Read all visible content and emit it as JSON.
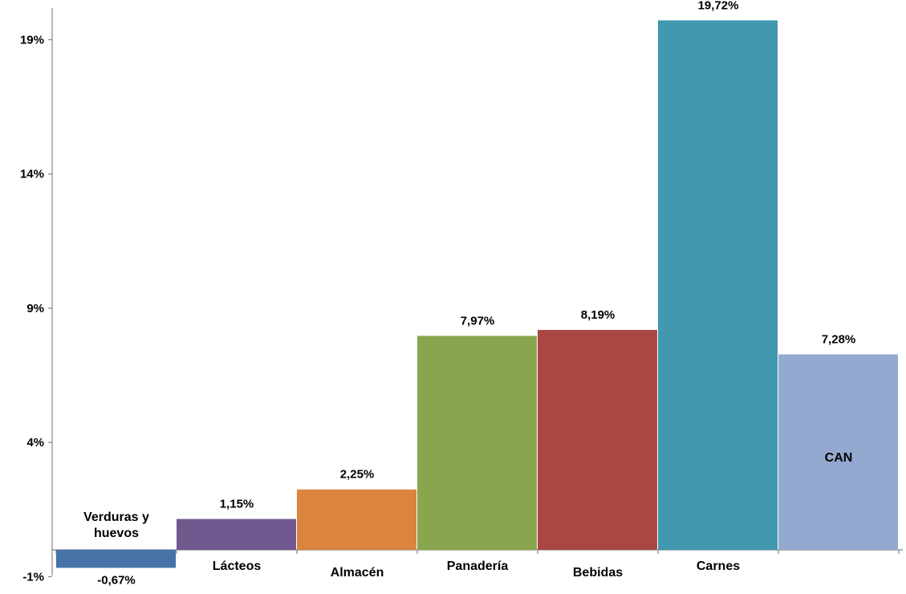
{
  "chart_data": {
    "type": "bar",
    "title": "",
    "xlabel": "",
    "ylabel": "",
    "ylim": [
      -1,
      20
    ],
    "yticks": [
      -1,
      4,
      9,
      14,
      19
    ],
    "ytick_labels": [
      "-1%",
      "4%",
      "9%",
      "14%",
      "19%"
    ],
    "grid": false,
    "legend": "none",
    "categories": [
      [
        "Verduras y",
        "huevos"
      ],
      [
        "Lácteos"
      ],
      [
        "Almacén"
      ],
      [
        "Panadería"
      ],
      [
        "Bebidas"
      ],
      [
        "Carnes"
      ],
      [
        "CAN"
      ]
    ],
    "values": [
      -0.67,
      1.15,
      2.25,
      7.97,
      8.19,
      19.72,
      7.28
    ],
    "value_labels": [
      "-0,67%",
      "1,15%",
      "2,25%",
      "7,97%",
      "8,19%",
      "19,72%",
      "7,28%"
    ],
    "colors": [
      "#4572a7",
      "#71588f",
      "#db843d",
      "#89a54e",
      "#aa4643",
      "#4198af",
      "#93a9cf"
    ],
    "axis_color": "#868686"
  }
}
